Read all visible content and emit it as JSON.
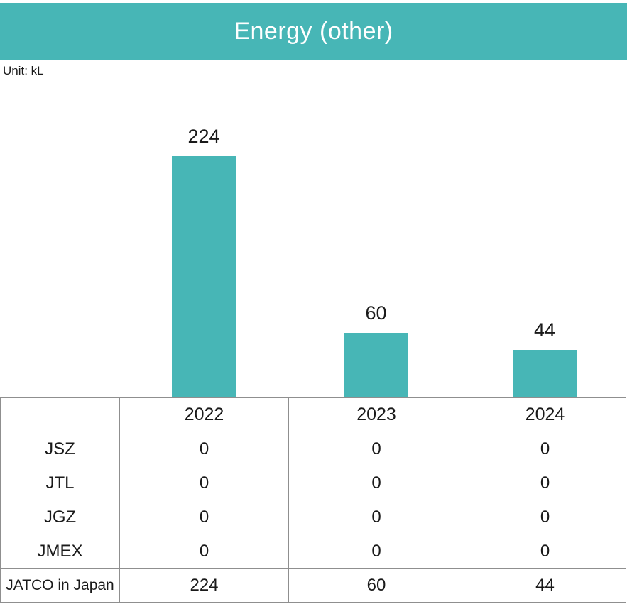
{
  "colors": {
    "accent_teal": "#47b6b6",
    "table_header_bg": "#dfdfdf",
    "table_border": "#8f8f8f",
    "title_text": "#ffffff",
    "body_text": "#1a1a1a"
  },
  "header": {
    "title": "Energy (other)"
  },
  "unit_label": "Unit: kL",
  "chart_data": {
    "type": "bar",
    "title": "Energy (other)",
    "unit": "kL",
    "categories": [
      "2022",
      "2023",
      "2024"
    ],
    "series": [
      {
        "name": "JSZ",
        "values": [
          0,
          0,
          0
        ]
      },
      {
        "name": "JTL",
        "values": [
          0,
          0,
          0
        ]
      },
      {
        "name": "JGZ",
        "values": [
          0,
          0,
          0
        ]
      },
      {
        "name": "JMEX",
        "values": [
          0,
          0,
          0
        ]
      },
      {
        "name": "JATCO in Japan",
        "values": [
          224,
          60,
          44
        ]
      }
    ],
    "plotted_series": "JATCO in Japan",
    "bar_values": [
      224,
      60,
      44
    ],
    "bar_color": "#47b6b6",
    "gridlines": false,
    "legend": "none",
    "y_axis_shown": false
  }
}
